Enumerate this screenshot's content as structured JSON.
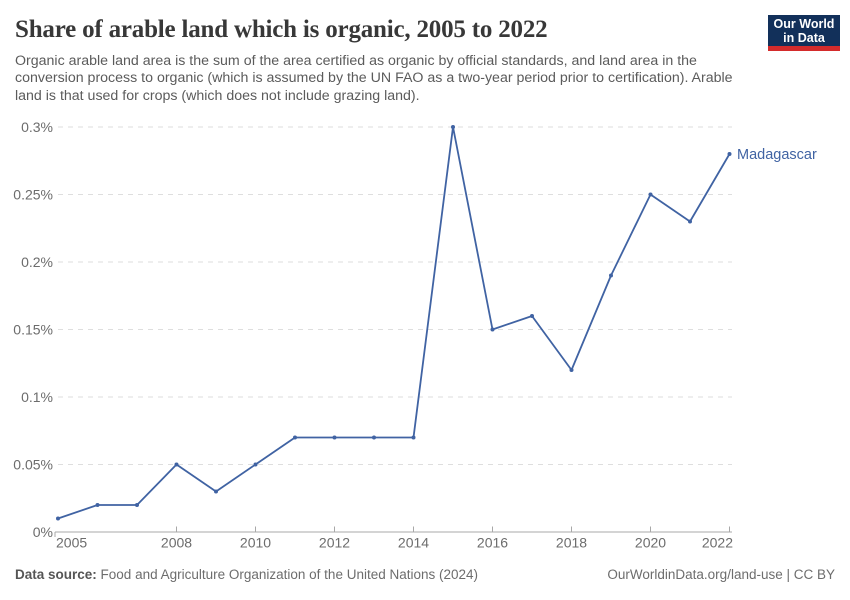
{
  "header": {
    "title": "Share of arable land which is organic, 2005 to 2022",
    "subtitle": "Organic arable land area is the sum of the area certified as organic by official standards, and land area in the conversion process to organic (which is assumed by the UN FAO as a two-year period prior to certification). Arable land is that used for crops (which does not include grazing land).",
    "logo": {
      "line1": "Our World",
      "line2": "in Data",
      "bg_color": "#12305a",
      "accent_color": "#d42b2b"
    }
  },
  "chart_data": {
    "type": "line",
    "title": "Share of arable land which is organic, 2005 to 2022",
    "x": [
      2005,
      2006,
      2007,
      2008,
      2009,
      2010,
      2011,
      2012,
      2013,
      2014,
      2015,
      2016,
      2017,
      2018,
      2019,
      2020,
      2021,
      2022
    ],
    "series": [
      {
        "name": "Madagascar",
        "values": [
          0.01,
          0.02,
          0.02,
          0.05,
          0.03,
          0.05,
          0.07,
          0.07,
          0.07,
          0.07,
          0.3,
          0.15,
          0.16,
          0.12,
          0.19,
          0.25,
          0.23,
          0.28
        ]
      }
    ],
    "unit": "%",
    "xlabel": "",
    "ylabel": "",
    "ylim": [
      0,
      0.3
    ],
    "yticks": [
      0,
      0.05,
      0.1,
      0.15,
      0.2,
      0.25,
      0.3
    ],
    "ytick_labels": [
      "0%",
      "0.05%",
      "0.1%",
      "0.15%",
      "0.2%",
      "0.25%",
      "0.3%"
    ],
    "xticks": [
      2005,
      2008,
      2010,
      2012,
      2014,
      2016,
      2018,
      2020,
      2022
    ],
    "grid": "horizontal-dashed",
    "gridline_color": "#dedede",
    "axis_color": "#a8a8a8",
    "tick_label_color": "#6c6c6c",
    "line_color": "#4063a3",
    "legend_position": "end-of-line-label"
  },
  "footer": {
    "source_label": "Data source:",
    "source_text": "Food and Agriculture Organization of the United Nations (2024)",
    "attribution": "OurWorldinData.org/land-use | CC BY"
  }
}
